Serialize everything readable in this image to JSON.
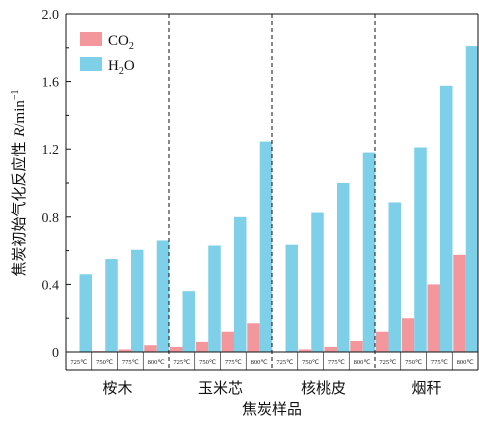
{
  "chart_data": {
    "type": "bar",
    "xlabel": "焦炭样品",
    "ylabel": "焦炭初始气化反应性 ",
    "ylabel_var": "R",
    "ylabel_unit": "/min",
    "ylabel_unit_exp": "−1",
    "ylim": [
      0,
      2.0
    ],
    "yticks": [
      "0",
      "0.4",
      "0.8",
      "1.2",
      "1.6",
      "2.0"
    ],
    "legend_position": "top-left",
    "groups": [
      {
        "name": "桉木",
        "temps": [
          "725℃",
          "750℃",
          "775℃",
          "800℃"
        ]
      },
      {
        "name": "玉米芯",
        "temps": [
          "725℃",
          "750℃",
          "775℃",
          "800℃"
        ]
      },
      {
        "name": "核桃皮",
        "temps": [
          "725℃",
          "750℃",
          "775℃",
          "800℃"
        ]
      },
      {
        "name": "烟秆",
        "temps": [
          "725℃",
          "750℃",
          "775℃",
          "800℃"
        ]
      }
    ],
    "series": [
      {
        "name": "CO",
        "name_sub": "2",
        "color": "#f4979c",
        "values": [
          0.0,
          0.005,
          0.015,
          0.04,
          0.03,
          0.06,
          0.12,
          0.17,
          0.0,
          0.015,
          0.03,
          0.065,
          0.12,
          0.2,
          0.4,
          0.575
        ]
      },
      {
        "name": "H",
        "name_sub": "2",
        "name_suffix": "O",
        "color": "#7dd0e8",
        "values": [
          0.46,
          0.55,
          0.605,
          0.66,
          0.36,
          0.63,
          0.8,
          1.245,
          0.635,
          0.825,
          1.0,
          1.18,
          0.885,
          1.21,
          1.575,
          1.81
        ]
      }
    ]
  }
}
